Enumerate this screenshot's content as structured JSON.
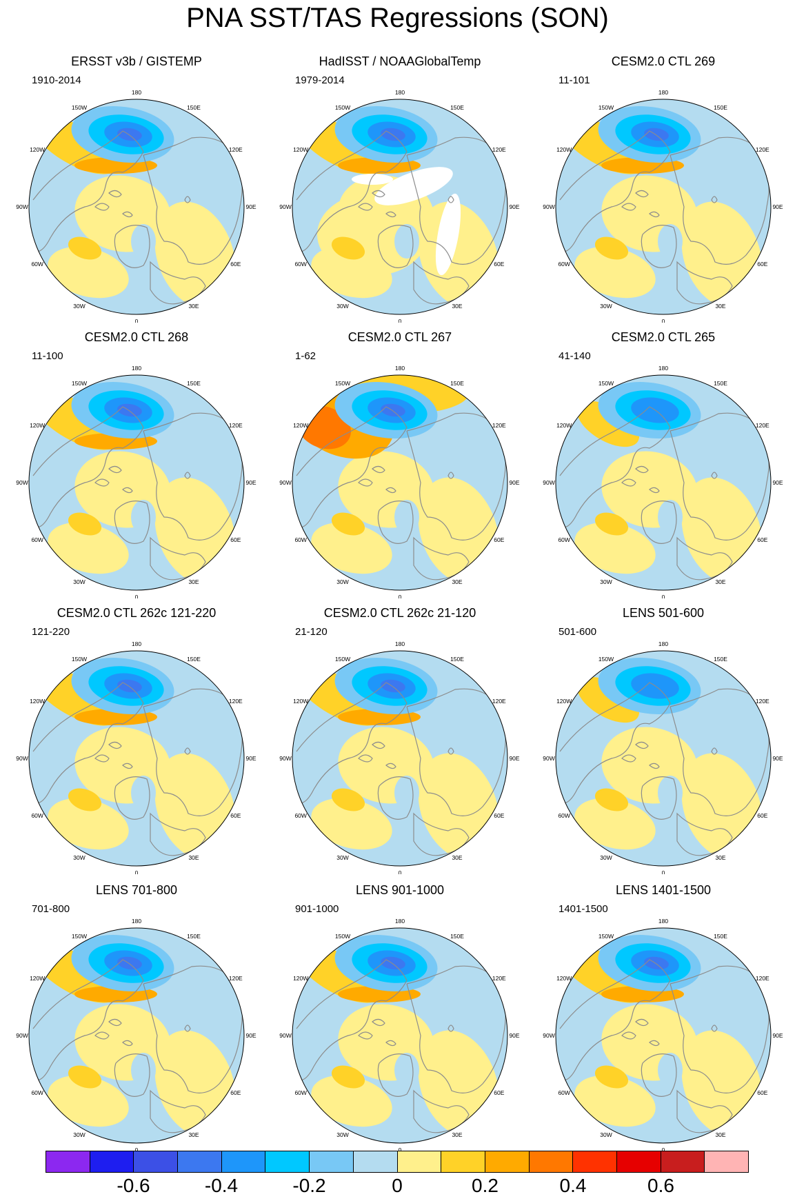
{
  "title": "PNA SST/TAS Regressions (SON)",
  "longitude_labels": [
    "180",
    "150E",
    "120E",
    "90E",
    "60E",
    "30E",
    "0",
    "30W",
    "60W",
    "90W",
    "120W",
    "150W"
  ],
  "panels": [
    {
      "title": "ERSST v3b / GISTEMP",
      "years": "1910-2014",
      "pattern": "obs1"
    },
    {
      "title": "HadISST / NOAAGlobalTemp",
      "years": "1979-2014",
      "pattern": "obs2"
    },
    {
      "title": "CESM2.0 CTL 269",
      "years": "11-101",
      "pattern": "model"
    },
    {
      "title": "CESM2.0 CTL 268",
      "years": "11-100",
      "pattern": "model"
    },
    {
      "title": "CESM2.0 CTL 267",
      "years": "1-62",
      "pattern": "warm"
    },
    {
      "title": "CESM2.0 CTL 265",
      "years": "41-140",
      "pattern": "weak"
    },
    {
      "title": "CESM2.0 CTL 262c 121-220",
      "years": "121-220",
      "pattern": "model"
    },
    {
      "title": "CESM2.0 CTL 262c 21-120",
      "years": "21-120",
      "pattern": "model"
    },
    {
      "title": "LENS 501-600",
      "years": "501-600",
      "pattern": "weak"
    },
    {
      "title": "LENS 701-800",
      "years": "701-800",
      "pattern": "model"
    },
    {
      "title": "LENS 901-1000",
      "years": "901-1000",
      "pattern": "model"
    },
    {
      "title": "LENS 1401-1500",
      "years": "1401-1500",
      "pattern": "model"
    }
  ],
  "colorbar": {
    "colors": [
      "#8c28f0",
      "#1e1ef0",
      "#3c50e6",
      "#3c78f0",
      "#1e96fa",
      "#00c8ff",
      "#78c8f5",
      "#b4dcf0",
      "#fff08c",
      "#ffd228",
      "#ffaa00",
      "#ff7800",
      "#ff3200",
      "#e60000",
      "#c81e1e",
      "#ffb4b4"
    ],
    "labels": [
      "-0.6",
      "-0.4",
      "-0.2",
      "0",
      "0.2",
      "0.4",
      "0.6"
    ]
  },
  "map_colors": {
    "ocean_neutral_neg": "#b4dcf0",
    "neutral_pos": "#fff08c",
    "coast": "#8c8c8c"
  }
}
